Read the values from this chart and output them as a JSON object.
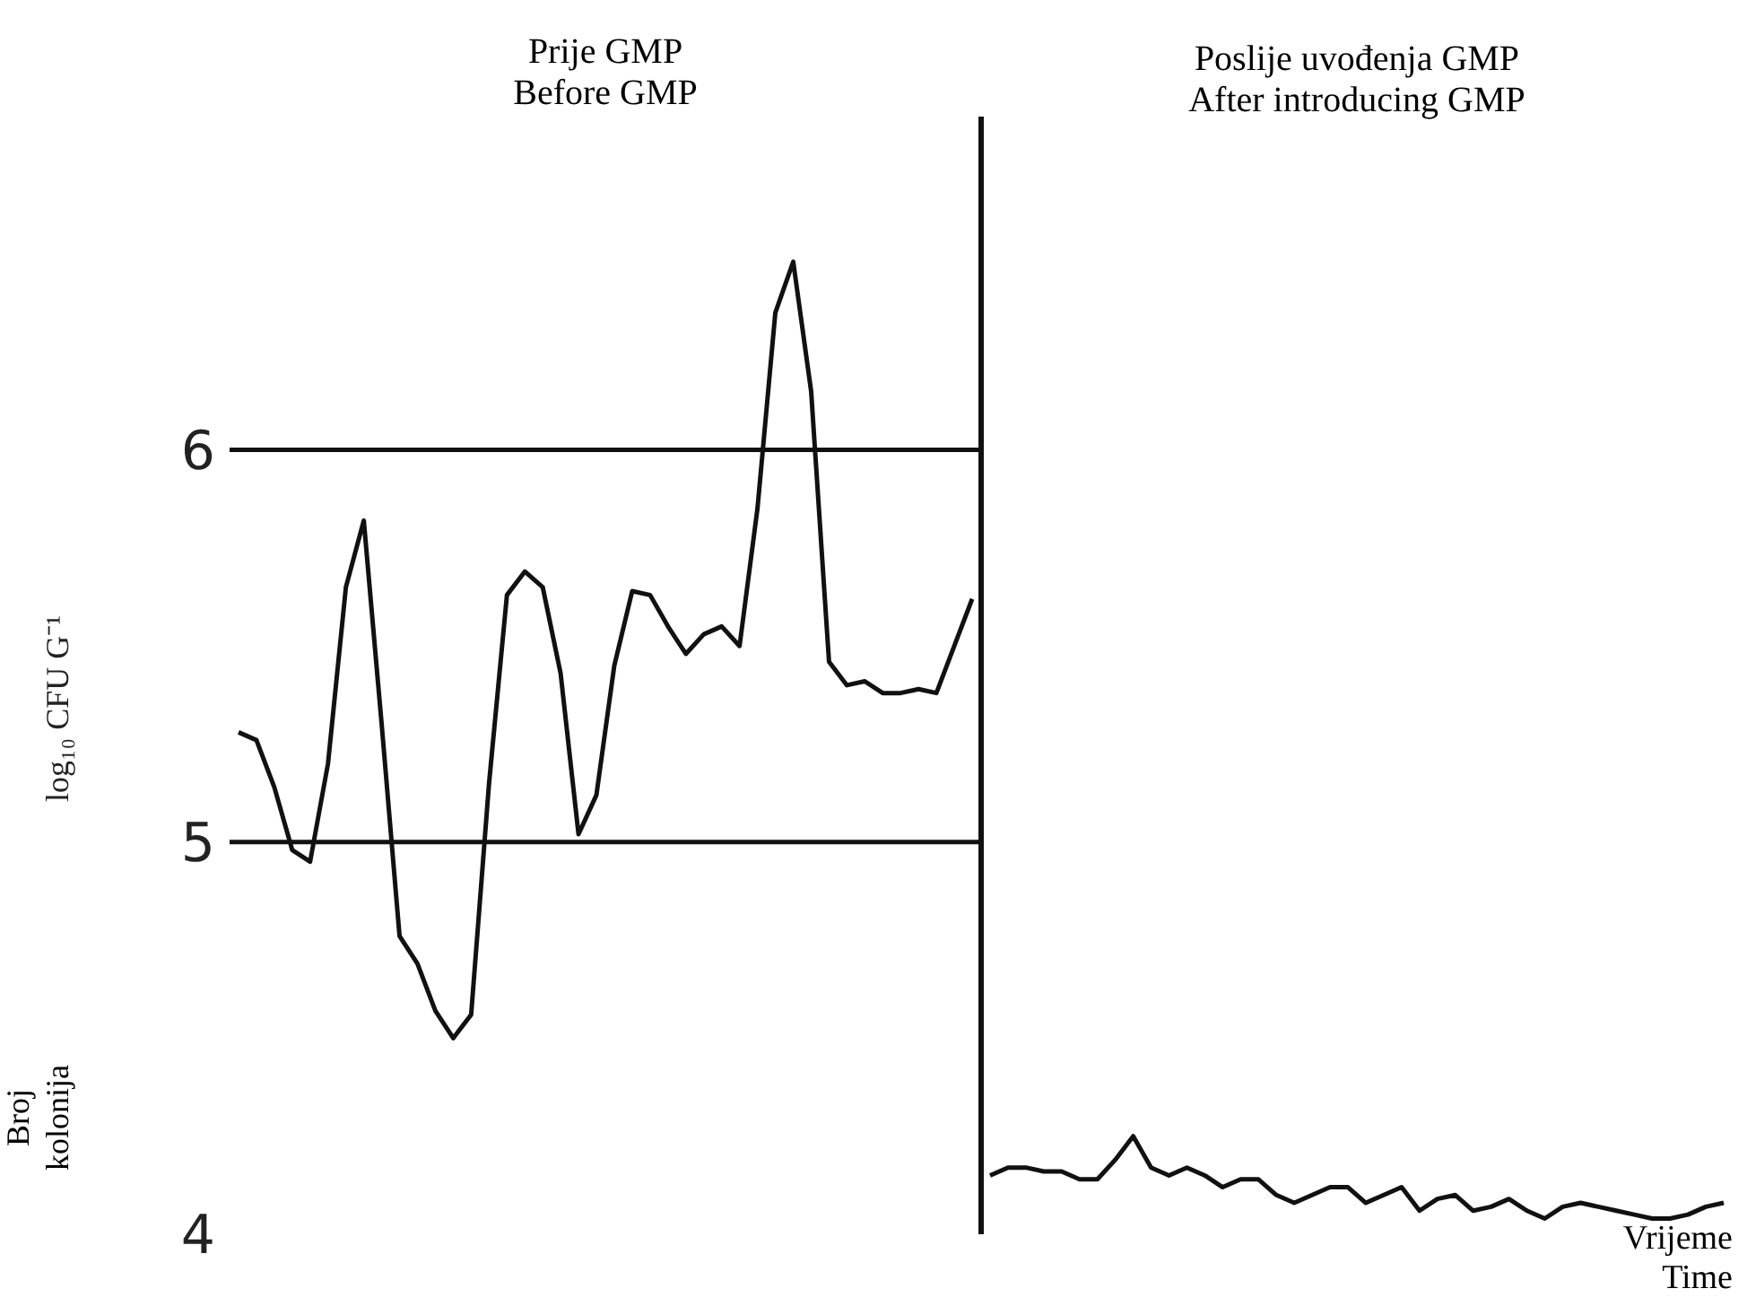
{
  "chart_data": {
    "type": "line",
    "title": "Prije GMP\nBefore GMP",
    "ylabel": "log₁₀ CFU G⁻¹",
    "xlabel": "Vrijeme\nTime",
    "annotations": [
      "Poslije uvođenja GMP\nAfter introducing GMP",
      "Broj\nkolonija"
    ],
    "ylim": [
      4,
      6.85
    ],
    "yticks": [
      4,
      5,
      6
    ],
    "tick_labels": "y",
    "categories": [
      null,
      null,
      null,
      null,
      null,
      null,
      null,
      null,
      null,
      null,
      null,
      null,
      null,
      null,
      null,
      null,
      null,
      null,
      null,
      null,
      null,
      null,
      null,
      null,
      null,
      null,
      null,
      null,
      null,
      null,
      null,
      null,
      null,
      null,
      null,
      null,
      null,
      null,
      null,
      null,
      null,
      null,
      null,
      null,
      null,
      null,
      null,
      null,
      null,
      null,
      null,
      null,
      null,
      null,
      null,
      null,
      null,
      null,
      null,
      null,
      null,
      null,
      null,
      null,
      null,
      null,
      null,
      null,
      null,
      null,
      null,
      null,
      null,
      null,
      null,
      null,
      null,
      null,
      null,
      null,
      null,
      null,
      null,
      null
    ],
    "series": [
      {
        "color": "#111111",
        "values": [
          5.28,
          5.26,
          5.14,
          4.98,
          4.95,
          5.2,
          5.65,
          5.82,
          5.3,
          4.76,
          4.69,
          4.57,
          4.5,
          4.56,
          5.15,
          5.63,
          5.69,
          5.65,
          5.43,
          5.02,
          5.12,
          5.45,
          5.64,
          5.63,
          5.55,
          5.48,
          5.53,
          5.55,
          5.5,
          5.85,
          6.35,
          6.48,
          6.15,
          5.46,
          5.4,
          5.41,
          5.38,
          5.38,
          5.39,
          5.38,
          5.5,
          5.62,
          null,
          null,
          null,
          null,
          null,
          null,
          null,
          null,
          null,
          null,
          null,
          null,
          null,
          null,
          null,
          null,
          null,
          null,
          null,
          null,
          null,
          null,
          null,
          null,
          null,
          null,
          null,
          null,
          null,
          null,
          null,
          null,
          null,
          null,
          null,
          null,
          null,
          null,
          null,
          null,
          null,
          null
        ]
      },
      {
        "color": "#111111",
        "values": [
          null,
          null,
          null,
          null,
          null,
          null,
          null,
          null,
          null,
          null,
          null,
          null,
          null,
          null,
          null,
          null,
          null,
          null,
          null,
          null,
          null,
          null,
          null,
          null,
          null,
          null,
          null,
          null,
          null,
          null,
          null,
          null,
          null,
          null,
          null,
          null,
          null,
          null,
          null,
          null,
          null,
          null,
          4.15,
          4.17,
          4.17,
          4.16,
          4.16,
          4.14,
          4.14,
          4.19,
          4.25,
          4.17,
          4.15,
          4.17,
          4.15,
          4.12,
          4.14,
          4.14,
          4.1,
          4.08,
          4.1,
          4.12,
          4.12,
          4.08,
          4.1,
          4.12,
          4.06,
          4.09,
          4.1,
          4.06,
          4.07,
          4.09,
          4.06,
          4.04,
          4.07,
          4.08,
          4.07,
          4.06,
          4.05,
          4.04,
          4.04,
          4.05,
          4.07,
          4.08
        ]
      }
    ],
    "ref_lines": [
      {
        "axis": "y",
        "value": 5,
        "color": "#111111"
      },
      {
        "axis": "y",
        "value": 6,
        "color": "#111111"
      }
    ]
  }
}
